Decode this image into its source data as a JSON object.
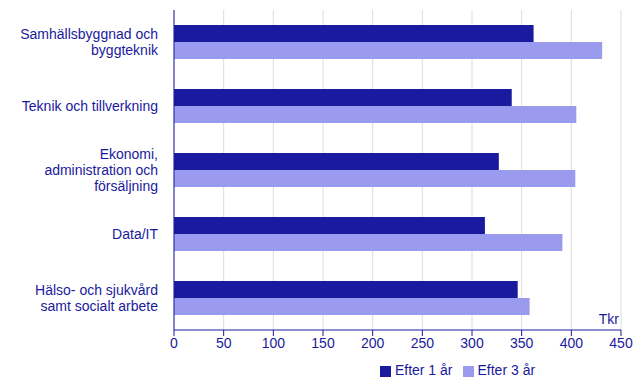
{
  "chart_data": {
    "type": "bar",
    "orientation": "horizontal",
    "categories": [
      "Samhällsbyggnad och\nbyggteknik",
      "Teknik och tillverkning",
      "Ekonomi,\nadministration och\nförsäljning",
      "Data/IT",
      "Hälso- och sjukvård\nsamt socialt arbete"
    ],
    "series": [
      {
        "name": "Efter 1 år",
        "color": "#1a1a9e",
        "values": [
          362,
          340,
          327,
          313,
          346
        ]
      },
      {
        "name": "Efter 3 år",
        "color": "#9a9aee",
        "values": [
          431,
          405,
          404,
          391,
          358
        ]
      }
    ],
    "x_label": "Tkr",
    "xlim": [
      0,
      450
    ],
    "xticks": [
      0,
      50,
      100,
      150,
      200,
      250,
      300,
      350,
      400,
      450
    ],
    "grid": true,
    "legend": "bottom"
  }
}
